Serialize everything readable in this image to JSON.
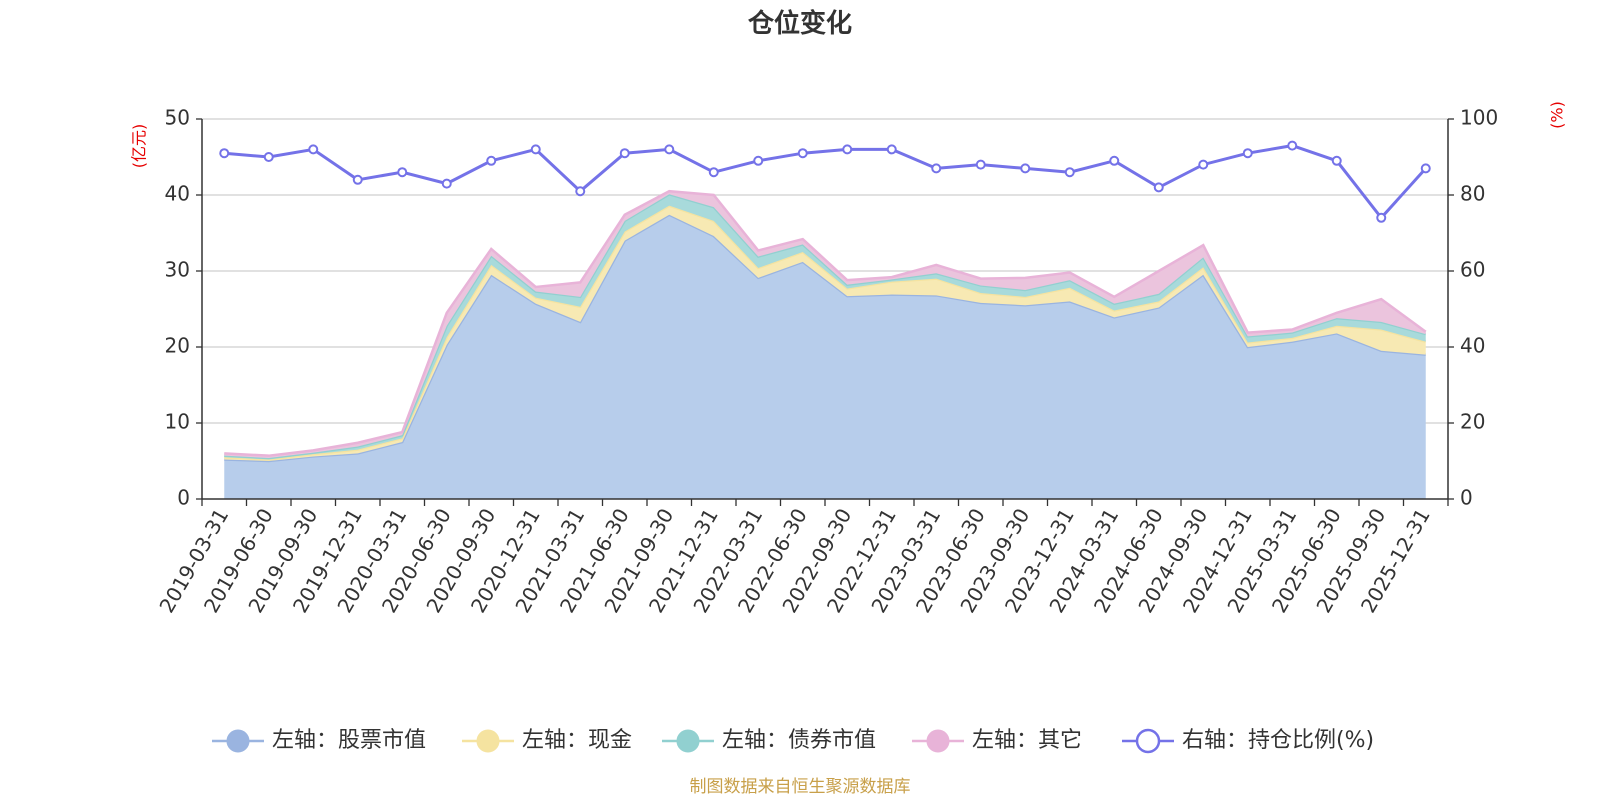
{
  "chart_data": {
    "type": "area",
    "title": "仓位变化",
    "left_axis": {
      "unit": "(亿元)",
      "ylim": [
        0,
        50
      ],
      "ticks": [
        0,
        10,
        20,
        30,
        40,
        50
      ]
    },
    "right_axis": {
      "unit": "(%)",
      "ylim": [
        0,
        100
      ],
      "ticks": [
        0,
        20,
        40,
        60,
        80,
        100
      ]
    },
    "categories": [
      "2019-03-31",
      "2019-06-30",
      "2019-09-30",
      "2019-12-31",
      "2020-03-31",
      "2020-06-30",
      "2020-09-30",
      "2020-12-31",
      "2021-03-31",
      "2021-06-30",
      "2021-09-30",
      "2021-12-31",
      "2022-03-31",
      "2022-06-30",
      "2022-09-30",
      "2022-12-31",
      "2023-03-31",
      "2023-06-30",
      "2023-09-30",
      "2023-12-31",
      "2024-03-31",
      "2024-06-30",
      "2024-09-30",
      "2024-12-31",
      "2025-03-31",
      "2025-06-30",
      "2025-09-30",
      "2025-12-31"
    ],
    "series": [
      {
        "name": "左轴：股票市值",
        "axis": "left",
        "kind": "stacked-area",
        "color": "#9ab4e0",
        "fill": "#b7cdeb",
        "values": [
          5.2,
          5.0,
          5.6,
          6.0,
          7.5,
          20.3,
          29.5,
          25.7,
          23.3,
          34.0,
          37.4,
          34.6,
          29.1,
          31.2,
          26.7,
          26.9,
          26.8,
          25.8,
          25.5,
          26.0,
          23.9,
          25.2,
          29.5,
          20.0,
          20.7,
          21.8,
          19.5,
          19.0
        ]
      },
      {
        "name": "左轴：现金",
        "axis": "left",
        "kind": "stacked-area",
        "color": "#f5e3a0",
        "fill": "#f7e9b3",
        "values": [
          0.3,
          0.2,
          0.3,
          0.5,
          0.5,
          1.0,
          1.3,
          0.8,
          2.0,
          1.2,
          1.2,
          2.0,
          1.3,
          1.3,
          1.0,
          1.7,
          2.2,
          1.3,
          1.1,
          1.8,
          0.9,
          0.8,
          1.0,
          0.6,
          0.5,
          1.0,
          2.8,
          1.7
        ]
      },
      {
        "name": "左轴：债券市值",
        "axis": "left",
        "kind": "stacked-area",
        "color": "#91d0d0",
        "fill": "#a8dadb",
        "values": [
          0.2,
          0.2,
          0.2,
          0.4,
          0.4,
          1.5,
          1.2,
          0.8,
          1.3,
          1.4,
          1.5,
          1.8,
          1.5,
          1.0,
          0.5,
          0.3,
          0.7,
          1.0,
          0.9,
          1.0,
          0.9,
          1.0,
          1.3,
          0.8,
          0.7,
          1.0,
          1.0,
          1.0
        ]
      },
      {
        "name": "左轴：其它",
        "axis": "left",
        "kind": "stacked-area",
        "color": "#e8b3d8",
        "fill": "#ebc4dd",
        "values": [
          0.3,
          0.3,
          0.3,
          0.5,
          0.4,
          1.7,
          0.9,
          0.6,
          1.9,
          0.8,
          0.4,
          1.6,
          0.8,
          0.7,
          0.6,
          0.3,
          1.1,
          0.9,
          1.6,
          1.0,
          0.9,
          3.0,
          1.6,
          0.5,
          0.4,
          0.7,
          3.0,
          0.3
        ]
      },
      {
        "name": "右轴：持仓比例(%)",
        "axis": "right",
        "kind": "line",
        "color": "#7472e8",
        "values": [
          91,
          90,
          92,
          84,
          86,
          83,
          89,
          92,
          81,
          91,
          92,
          86,
          89,
          91,
          92,
          92,
          87,
          88,
          87,
          86,
          89,
          82,
          88,
          91,
          93,
          89,
          74,
          87
        ]
      }
    ],
    "legend_position": "bottom",
    "grid": true,
    "source_note": "制图数据来自恒生聚源数据库"
  }
}
